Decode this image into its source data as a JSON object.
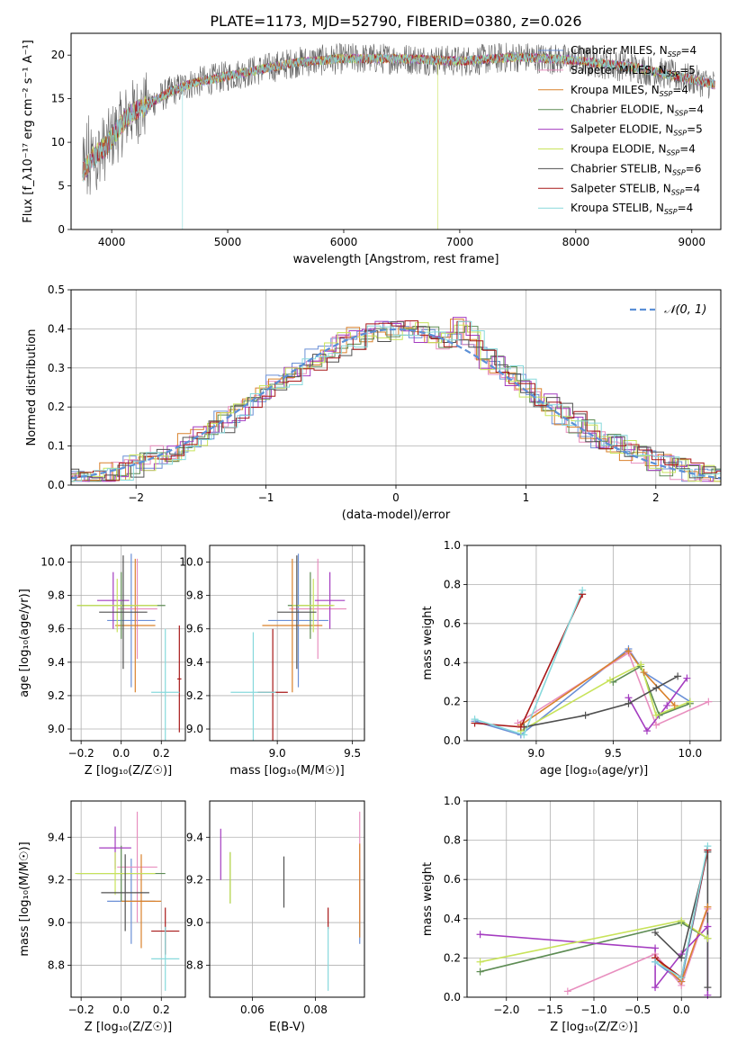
{
  "title": "PLATE=1173, MJD=52790, FIBERID=0380, z=0.026",
  "models": [
    {
      "name": "Chabrier MILES",
      "nssp": "4",
      "color": "#6a8fd6"
    },
    {
      "name": "Salpeter MILES",
      "nssp": "5",
      "color": "#e88fbf"
    },
    {
      "name": "Kroupa MILES",
      "nssp": "4",
      "color": "#d9812b"
    },
    {
      "name": "Chabrier ELODIE",
      "nssp": "4",
      "color": "#5e8c54"
    },
    {
      "name": "Salpeter ELODIE",
      "nssp": "5",
      "color": "#a43cc0"
    },
    {
      "name": "Kroupa ELODIE",
      "nssp": "4",
      "color": "#c8e35a"
    },
    {
      "name": "Chabrier STELIB",
      "nssp": "6",
      "color": "#505050"
    },
    {
      "name": "Salpeter STELIB",
      "nssp": "4",
      "color": "#a81818"
    },
    {
      "name": "Kroupa STELIB",
      "nssp": "4",
      "color": "#87d9dc"
    }
  ],
  "chart_data": [
    {
      "type": "line",
      "id": "spectrum",
      "xlabel": "wavelength [Angstrom, rest frame]",
      "ylabel": "Flux [f_λ10⁻¹⁷ erg cm⁻² s⁻¹ A⁻¹]",
      "xlim": [
        3650,
        9250
      ],
      "ylim": [
        0,
        22.5
      ],
      "xticks": [
        4000,
        5000,
        6000,
        7000,
        8000,
        9000
      ],
      "yticks": [
        0,
        5,
        10,
        15,
        20
      ],
      "continuum": {
        "x": [
          3750,
          3850,
          3950,
          4050,
          4150,
          4300,
          4500,
          4700,
          5000,
          5300,
          5600,
          6000,
          6500,
          7000,
          7500,
          8000,
          8500,
          9000,
          9200
        ],
        "y": [
          6.5,
          8.5,
          9.5,
          11.5,
          13.2,
          14.2,
          15.8,
          16.8,
          17.6,
          18.4,
          19.2,
          19.6,
          19.6,
          19.3,
          19.8,
          19.4,
          18.6,
          17.2,
          16.6
        ]
      },
      "drops": [
        {
          "x": 4610,
          "series": 8
        },
        {
          "x": 6810,
          "series": 5
        },
        {
          "x": 7420,
          "series": 2
        }
      ]
    },
    {
      "type": "line",
      "id": "residuals",
      "xlabel": "(data-model)/error",
      "ylabel": "Normed distribution",
      "legend": "N(0,1)",
      "xlim": [
        -2.5,
        2.5
      ],
      "ylim": [
        0,
        0.5
      ],
      "xticks": [
        -2,
        -1,
        0,
        1,
        2
      ],
      "yticks": [
        0.0,
        0.1,
        0.2,
        0.3,
        0.4,
        0.5
      ]
    },
    {
      "type": "scatter",
      "id": "z-age",
      "xlabel": "Z [log₁₀(Z/Z☉)]",
      "ylabel": "age  [log₁₀(age/yr)]",
      "xlim": [
        -0.25,
        0.32
      ],
      "ylim": [
        8.93,
        10.1
      ],
      "xticks": [
        -0.2,
        0.0,
        0.2
      ],
      "yticks": [
        9.0,
        9.2,
        9.4,
        9.6,
        9.8,
        10.0
      ],
      "points": [
        {
          "s": 0,
          "x": 0.05,
          "y": 9.65,
          "xe": 0.12,
          "ye": 0.4
        },
        {
          "s": 1,
          "x": 0.08,
          "y": 9.72,
          "xe": 0.1,
          "ye": 0.3
        },
        {
          "s": 2,
          "x": 0.07,
          "y": 9.62,
          "xe": 0.1,
          "ye": 0.4
        },
        {
          "s": 3,
          "x": 0.0,
          "y": 9.74,
          "xe": 0.22,
          "ye": 0.2
        },
        {
          "s": 4,
          "x": -0.04,
          "y": 9.77,
          "xe": 0.08,
          "ye": 0.17
        },
        {
          "s": 5,
          "x": -0.02,
          "y": 9.74,
          "xe": 0.2,
          "ye": 0.16
        },
        {
          "s": 6,
          "x": 0.01,
          "y": 9.7,
          "xe": 0.12,
          "ye": 0.34
        },
        {
          "s": 7,
          "x": 0.29,
          "y": 9.3,
          "xe": 0.01,
          "ye": 0.32
        },
        {
          "s": 8,
          "x": 0.22,
          "y": 9.22,
          "xe": 0.07,
          "ye": 0.38
        }
      ]
    },
    {
      "type": "scatter",
      "id": "mass-age",
      "xlabel": "mass [log₁₀(M/M☉)]",
      "ylabel": "",
      "xlim": [
        8.55,
        9.58
      ],
      "ylim": [
        8.93,
        10.1
      ],
      "xticks": [
        9.0,
        9.5
      ],
      "yticks": [
        9.0,
        9.2,
        9.4,
        9.6,
        9.8,
        10.0
      ],
      "points": [
        {
          "s": 0,
          "x": 9.14,
          "y": 9.65,
          "xe": 0.2,
          "ye": 0.4
        },
        {
          "s": 1,
          "x": 9.27,
          "y": 9.72,
          "xe": 0.19,
          "ye": 0.3
        },
        {
          "s": 2,
          "x": 9.1,
          "y": 9.62,
          "xe": 0.2,
          "ye": 0.4
        },
        {
          "s": 3,
          "x": 9.22,
          "y": 9.74,
          "xe": 0.15,
          "ye": 0.2
        },
        {
          "s": 4,
          "x": 9.35,
          "y": 9.77,
          "xe": 0.1,
          "ye": 0.17
        },
        {
          "s": 5,
          "x": 9.24,
          "y": 9.74,
          "xe": 0.14,
          "ye": 0.16
        },
        {
          "s": 6,
          "x": 9.13,
          "y": 9.7,
          "xe": 0.13,
          "ye": 0.34
        },
        {
          "s": 7,
          "x": 8.97,
          "y": 9.22,
          "xe": 0.1,
          "ye": 0.38
        },
        {
          "s": 8,
          "x": 8.84,
          "y": 9.22,
          "xe": 0.15,
          "ye": 0.36
        }
      ]
    },
    {
      "type": "line",
      "id": "age-weight",
      "xlabel": "age  [log₁₀(age/yr)]",
      "ylabel": "mass weight",
      "xlim": [
        8.55,
        10.2
      ],
      "ylim": [
        0,
        1.0
      ],
      "xticks": [
        9.0,
        9.5,
        10.0
      ],
      "yticks": [
        0.0,
        0.2,
        0.4,
        0.6,
        0.8,
        1.0
      ],
      "series": [
        {
          "s": 0,
          "x": [
            8.6,
            8.9,
            9.6,
            9.7,
            10.0
          ],
          "y": [
            0.1,
            0.03,
            0.47,
            0.35,
            0.2
          ]
        },
        {
          "s": 1,
          "x": [
            8.88,
            9.6,
            9.78,
            10.12
          ],
          "y": [
            0.09,
            0.45,
            0.08,
            0.2
          ]
        },
        {
          "s": 2,
          "x": [
            8.9,
            9.6,
            9.7,
            9.9
          ],
          "y": [
            0.08,
            0.46,
            0.35,
            0.18
          ]
        },
        {
          "s": 3,
          "x": [
            9.5,
            9.68,
            9.8,
            10.0
          ],
          "y": [
            0.3,
            0.38,
            0.13,
            0.19
          ]
        },
        {
          "s": 4,
          "x": [
            9.6,
            9.72,
            9.85,
            9.98
          ],
          "y": [
            0.22,
            0.05,
            0.18,
            0.32
          ]
        },
        {
          "s": 5,
          "x": [
            8.9,
            9.48,
            9.68,
            9.78,
            10.0
          ],
          "y": [
            0.05,
            0.31,
            0.39,
            0.13,
            0.2
          ]
        },
        {
          "s": 6,
          "x": [
            8.92,
            9.32,
            9.6,
            9.78,
            9.92
          ],
          "y": [
            0.07,
            0.13,
            0.19,
            0.27,
            0.33
          ]
        },
        {
          "s": 7,
          "x": [
            8.6,
            8.9,
            9.3
          ],
          "y": [
            0.09,
            0.07,
            0.75
          ]
        },
        {
          "s": 8,
          "x": [
            8.6,
            8.92,
            9.3
          ],
          "y": [
            0.11,
            0.03,
            0.77
          ]
        }
      ]
    },
    {
      "type": "scatter",
      "id": "z-mass",
      "xlabel": "Z [log₁₀(Z/Z☉)]",
      "ylabel": "mass [log₁₀(M/M☉)]",
      "xlim": [
        -0.25,
        0.32
      ],
      "ylim": [
        8.65,
        9.57
      ],
      "xticks": [
        -0.2,
        0.0,
        0.2
      ],
      "yticks": [
        8.8,
        9.0,
        9.2,
        9.4
      ],
      "points": [
        {
          "s": 0,
          "x": 0.05,
          "y": 9.1,
          "xe": 0.12,
          "ye": 0.2
        },
        {
          "s": 1,
          "x": 0.08,
          "y": 9.26,
          "xe": 0.1,
          "ye": 0.26
        },
        {
          "s": 2,
          "x": 0.1,
          "y": 9.1,
          "xe": 0.1,
          "ye": 0.22
        },
        {
          "s": 3,
          "x": 0.0,
          "y": 9.23,
          "xe": 0.22,
          "ye": 0.13
        },
        {
          "s": 4,
          "x": -0.03,
          "y": 9.35,
          "xe": 0.08,
          "ye": 0.1
        },
        {
          "s": 5,
          "x": -0.03,
          "y": 9.23,
          "xe": 0.2,
          "ye": 0.1
        },
        {
          "s": 6,
          "x": 0.02,
          "y": 9.14,
          "xe": 0.12,
          "ye": 0.18
        },
        {
          "s": 7,
          "x": 0.22,
          "y": 8.96,
          "xe": 0.07,
          "ye": 0.11
        },
        {
          "s": 8,
          "x": 0.22,
          "y": 8.83,
          "xe": 0.07,
          "ye": 0.15
        }
      ]
    },
    {
      "type": "scatter",
      "id": "ebv-mass",
      "xlabel": "E(B-V)",
      "ylabel": "",
      "xlim": [
        0.0465,
        0.0955
      ],
      "ylim": [
        8.65,
        9.57
      ],
      "xticks": [
        0.06,
        0.08
      ],
      "yticks": [
        8.8,
        9.0,
        9.2,
        9.4
      ],
      "points": [
        {
          "s": 0,
          "x": 0.094,
          "y": 9.1,
          "ye": 0.2
        },
        {
          "s": 1,
          "x": 0.094,
          "y": 9.26,
          "ye": 0.26
        },
        {
          "s": 2,
          "x": 0.094,
          "y": 9.15,
          "ye": 0.22
        },
        {
          "s": 3,
          "x": 0.053,
          "y": 9.21,
          "ye": 0.12
        },
        {
          "s": 4,
          "x": 0.05,
          "y": 9.32,
          "ye": 0.12
        },
        {
          "s": 5,
          "x": 0.053,
          "y": 9.21,
          "ye": 0.12
        },
        {
          "s": 6,
          "x": 0.07,
          "y": 9.19,
          "ye": 0.12
        },
        {
          "s": 7,
          "x": 0.084,
          "y": 9.02,
          "ye": 0.05
        },
        {
          "s": 8,
          "x": 0.084,
          "y": 8.83,
          "ye": 0.15
        }
      ]
    },
    {
      "type": "line",
      "id": "z-weight",
      "xlabel": "Z [log₁₀(Z/Z☉)]",
      "ylabel": "mass weight",
      "xlim": [
        -2.45,
        0.45
      ],
      "ylim": [
        0,
        1.0
      ],
      "xticks": [
        -2.0,
        -1.5,
        -1.0,
        -0.5,
        0.0
      ],
      "yticks": [
        0.0,
        0.2,
        0.4,
        0.6,
        0.8,
        1.0
      ],
      "series": [
        {
          "s": 0,
          "x": [
            -0.3,
            0.0,
            0.3
          ],
          "y": [
            0.18,
            0.08,
            0.75
          ]
        },
        {
          "s": 1,
          "x": [
            -1.3,
            -0.3,
            0.0,
            0.3
          ],
          "y": [
            0.03,
            0.22,
            0.06,
            0.45
          ]
        },
        {
          "s": 2,
          "x": [
            -0.3,
            0.0,
            0.3
          ],
          "y": [
            0.2,
            0.08,
            0.46
          ]
        },
        {
          "s": 3,
          "x": [
            -2.3,
            0.0,
            0.3
          ],
          "y": [
            0.13,
            0.38,
            0.3
          ]
        },
        {
          "s": 4,
          "x": [
            -2.3,
            -0.3,
            -0.3,
            0.0,
            0.3,
            0.3
          ],
          "y": [
            0.32,
            0.25,
            0.05,
            0.22,
            0.36,
            0.01
          ]
        },
        {
          "s": 5,
          "x": [
            -2.3,
            0.0,
            0.3
          ],
          "y": [
            0.18,
            0.39,
            0.3
          ]
        },
        {
          "s": 6,
          "x": [
            -0.3,
            0.0,
            0.3,
            0.3
          ],
          "y": [
            0.33,
            0.2,
            0.74,
            0.05
          ]
        },
        {
          "s": 7,
          "x": [
            -0.3,
            0.0,
            0.3
          ],
          "y": [
            0.2,
            0.1,
            0.75
          ]
        },
        {
          "s": 8,
          "x": [
            -0.3,
            0.0,
            0.3
          ],
          "y": [
            0.18,
            0.1,
            0.77
          ]
        }
      ]
    }
  ]
}
